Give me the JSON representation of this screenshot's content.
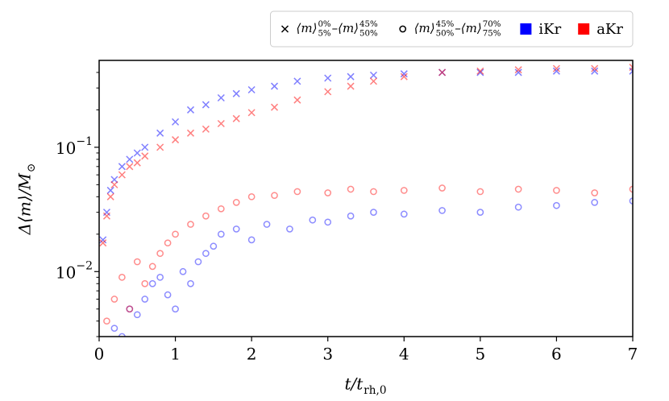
{
  "chart_data": {
    "type": "scatter",
    "xlabel": {
      "text": "t/t",
      "sub": "rh,0"
    },
    "ylabel": {
      "text": "Δ⟨m⟩/M",
      "sub": "⊙"
    },
    "xlim": [
      0,
      7
    ],
    "xticks": [
      0,
      1,
      2,
      3,
      4,
      5,
      6,
      7
    ],
    "ylim": [
      0.003,
      0.5
    ],
    "yscale": "log",
    "yticks": [
      {
        "value": 0.01,
        "label": "10−2"
      },
      {
        "value": 0.1,
        "label": "10−1"
      }
    ],
    "yminorticks": [
      0.003,
      0.004,
      0.005,
      0.006,
      0.007,
      0.008,
      0.009,
      0.02,
      0.03,
      0.04,
      0.05,
      0.06,
      0.07,
      0.08,
      0.09,
      0.2,
      0.3,
      0.4
    ],
    "legend_position": "top-right",
    "markers": [
      {
        "marker": "x",
        "label": [
          {
            "text": "⟨m⟩",
            "sup": "0%",
            "sub": "5%"
          },
          {
            "text": "–⟨m⟩",
            "sup": "45%",
            "sub": "50%"
          }
        ]
      },
      {
        "marker": "o",
        "label": [
          {
            "text": "⟨m⟩",
            "sup": "45%",
            "sub": "50%"
          },
          {
            "text": "–⟨m⟩",
            "sup": "70%",
            "sub": "75%"
          }
        ]
      }
    ],
    "series": [
      {
        "name": "iKr",
        "color": "#0000ff",
        "points": [
          {
            "x": [
              0.05,
              0.1,
              0.15,
              0.2,
              0.3,
              0.4,
              0.5,
              0.6,
              0.8,
              1.0,
              1.2,
              1.4,
              1.6,
              1.8,
              2.0,
              2.3,
              2.6,
              3.0,
              3.3,
              3.6,
              4.0,
              4.5,
              5.0,
              5.5,
              6.0,
              6.5,
              7.0
            ],
            "values": [
              0.018,
              0.03,
              0.045,
              0.055,
              0.07,
              0.08,
              0.09,
              0.1,
              0.13,
              0.16,
              0.2,
              0.22,
              0.25,
              0.27,
              0.29,
              0.31,
              0.34,
              0.36,
              0.37,
              0.38,
              0.39,
              0.4,
              0.4,
              0.4,
              0.41,
              0.41,
              0.41
            ]
          },
          {
            "x": [
              0.2,
              0.3,
              0.4,
              0.5,
              0.6,
              0.7,
              0.8,
              0.9,
              1.0,
              1.1,
              1.2,
              1.3,
              1.4,
              1.5,
              1.6,
              1.8,
              2.0,
              2.2,
              2.5,
              2.8,
              3.0,
              3.3,
              3.6,
              4.0,
              4.5,
              5.0,
              5.5,
              6.0,
              6.5,
              7.0
            ],
            "values": [
              0.0035,
              0.003,
              0.005,
              0.0045,
              0.006,
              0.008,
              0.009,
              0.0065,
              0.005,
              0.01,
              0.008,
              0.012,
              0.014,
              0.016,
              0.02,
              0.022,
              0.018,
              0.024,
              0.022,
              0.026,
              0.025,
              0.028,
              0.03,
              0.029,
              0.031,
              0.03,
              0.033,
              0.034,
              0.036,
              0.037
            ]
          }
        ]
      },
      {
        "name": "aKr",
        "color": "#ff0000",
        "points": [
          {
            "x": [
              0.05,
              0.1,
              0.15,
              0.2,
              0.3,
              0.4,
              0.5,
              0.6,
              0.8,
              1.0,
              1.2,
              1.4,
              1.6,
              1.8,
              2.0,
              2.3,
              2.6,
              3.0,
              3.3,
              3.6,
              4.0,
              4.5,
              5.0,
              5.5,
              6.0,
              6.5,
              7.0
            ],
            "values": [
              0.017,
              0.028,
              0.04,
              0.05,
              0.06,
              0.07,
              0.075,
              0.085,
              0.1,
              0.115,
              0.13,
              0.14,
              0.155,
              0.17,
              0.19,
              0.21,
              0.24,
              0.28,
              0.31,
              0.34,
              0.37,
              0.4,
              0.41,
              0.42,
              0.43,
              0.43,
              0.44
            ]
          },
          {
            "x": [
              0.1,
              0.2,
              0.3,
              0.4,
              0.5,
              0.6,
              0.7,
              0.8,
              0.9,
              1.0,
              1.2,
              1.4,
              1.6,
              1.8,
              2.0,
              2.3,
              2.6,
              3.0,
              3.3,
              3.6,
              4.0,
              4.5,
              5.0,
              5.5,
              6.0,
              6.5,
              7.0
            ],
            "values": [
              0.004,
              0.006,
              0.009,
              0.005,
              0.012,
              0.008,
              0.011,
              0.014,
              0.017,
              0.02,
              0.024,
              0.028,
              0.032,
              0.036,
              0.04,
              0.041,
              0.044,
              0.043,
              0.046,
              0.044,
              0.045,
              0.047,
              0.044,
              0.046,
              0.045,
              0.043,
              0.046
            ]
          }
        ]
      }
    ]
  }
}
